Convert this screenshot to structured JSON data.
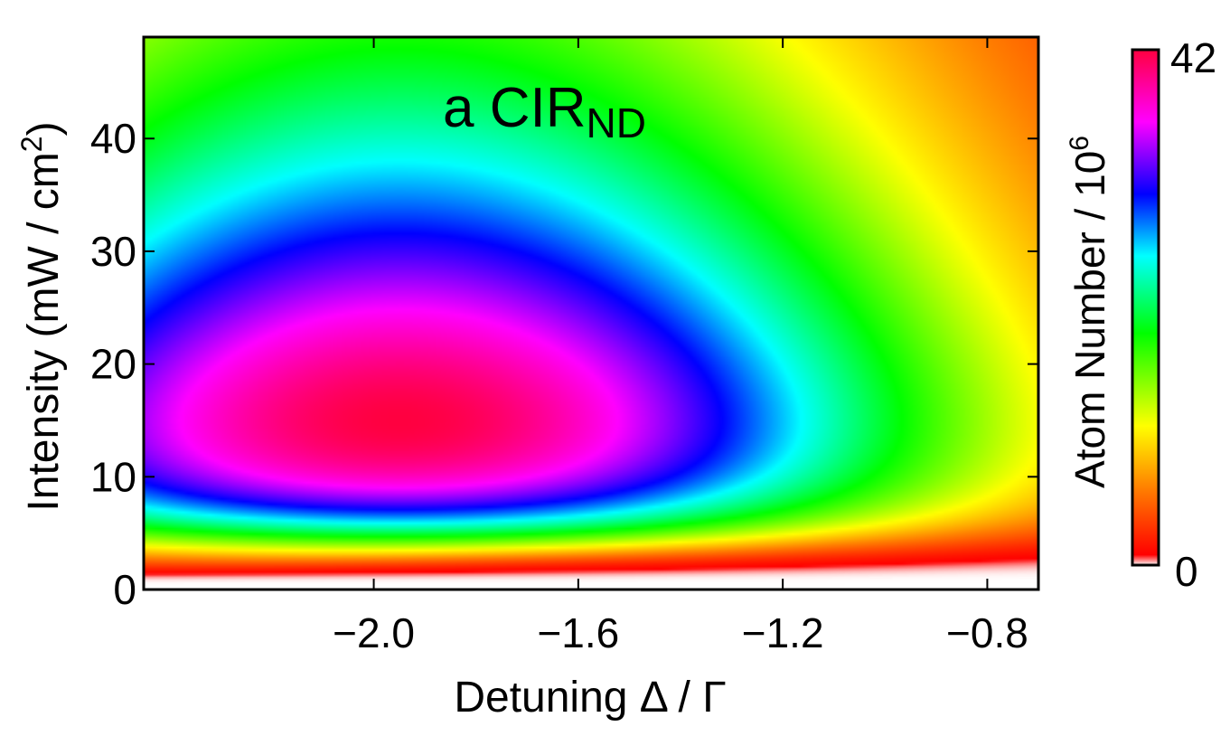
{
  "chart_data": {
    "type": "heatmap",
    "annotation": {
      "main": "a CIR",
      "subscript": "ND"
    },
    "xlabel": "Detuning Δ / Γ",
    "ylabel": {
      "main": "Intensity (mW / cm",
      "superscript": "2",
      "close": ")"
    },
    "xlim": [
      -2.45,
      -0.7
    ],
    "ylim": [
      0,
      49
    ],
    "x_ticks": [
      {
        "value": -2.0,
        "label": "−2.0"
      },
      {
        "value": -1.6,
        "label": "−1.6"
      },
      {
        "value": -1.2,
        "label": "−1.2"
      },
      {
        "value": -0.8,
        "label": "−0.8"
      }
    ],
    "y_ticks": [
      {
        "value": 0,
        "label": "0"
      },
      {
        "value": 10,
        "label": "10"
      },
      {
        "value": 20,
        "label": "20"
      },
      {
        "value": 30,
        "label": "30"
      },
      {
        "value": 40,
        "label": "40"
      }
    ],
    "colorbar": {
      "label": {
        "main": "Atom Number / 10",
        "superscript": "6"
      },
      "min": 0,
      "max": 42,
      "min_label": "0",
      "max_label": "42",
      "colormap": [
        "#ffffff",
        "#ff0000",
        "#ff8000",
        "#ffff00",
        "#00ff00",
        "#00ffff",
        "#0000ff",
        "#ff00ff",
        "#ff0040"
      ]
    },
    "peak": {
      "x": -1.95,
      "y": 15,
      "value": 42
    },
    "grid": false
  }
}
